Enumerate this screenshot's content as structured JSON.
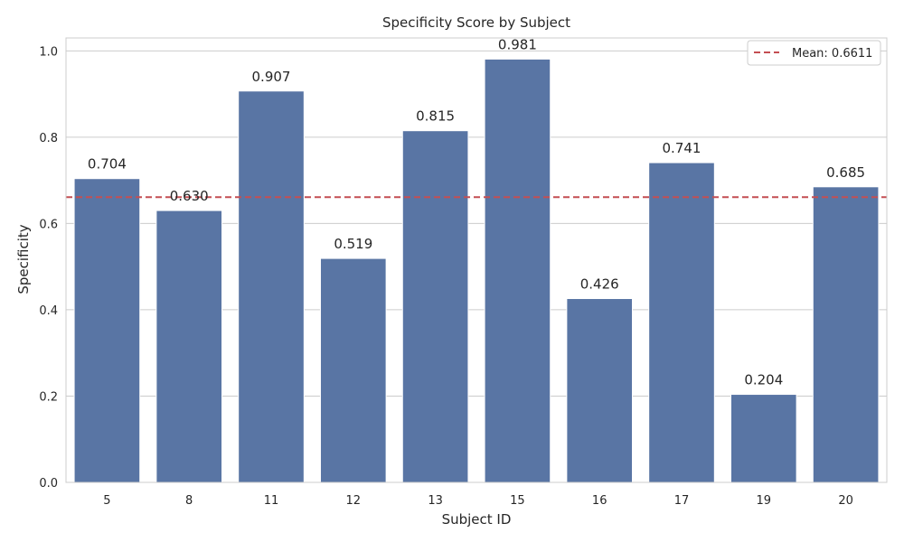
{
  "chart_data": {
    "type": "bar",
    "title": "Specificity Score by Subject",
    "xlabel": "Subject ID",
    "ylabel": "Specificity",
    "categories": [
      "5",
      "8",
      "11",
      "12",
      "13",
      "15",
      "16",
      "17",
      "19",
      "20"
    ],
    "values": [
      0.704,
      0.63,
      0.907,
      0.519,
      0.815,
      0.981,
      0.426,
      0.741,
      0.204,
      0.685
    ],
    "data_labels": [
      "0.704",
      "0.630",
      "0.907",
      "0.519",
      "0.815",
      "0.981",
      "0.426",
      "0.741",
      "0.204",
      "0.685"
    ],
    "ylim": [
      0,
      1.03
    ],
    "yticks": [
      0.0,
      0.2,
      0.4,
      0.6,
      0.8,
      1.0
    ],
    "ytick_labels": [
      "0.0",
      "0.2",
      "0.4",
      "0.6",
      "0.8",
      "1.0"
    ],
    "mean_line": {
      "value": 0.6611,
      "label": "Mean: 0.6611"
    },
    "legend_position": "top-right",
    "grid": "horizontal",
    "colors": {
      "bar": "#5975a4",
      "mean_line": "#c44e52",
      "grid": "#cccccc",
      "spine": "#cccccc"
    }
  }
}
